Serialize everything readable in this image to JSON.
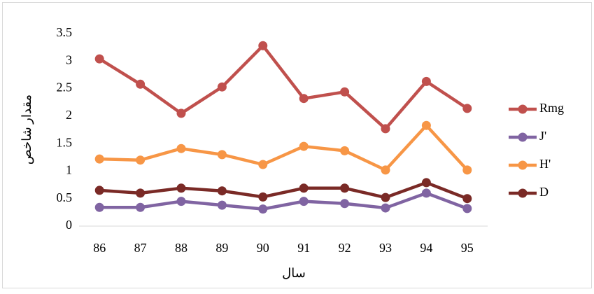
{
  "chart_data": {
    "type": "line",
    "y_label": "مقدار شاخص",
    "x_label": "سال",
    "categories": [
      "86",
      "87",
      "88",
      "89",
      "90",
      "91",
      "92",
      "93",
      "94",
      "95"
    ],
    "series": [
      {
        "name": "Rmg",
        "color": "#c0504d",
        "values": [
          3.04,
          2.58,
          2.05,
          2.53,
          3.28,
          2.32,
          2.44,
          1.77,
          2.63,
          2.14
        ]
      },
      {
        "name": "J'",
        "color": "#8064a2",
        "values": [
          0.34,
          0.34,
          0.45,
          0.38,
          0.31,
          0.45,
          0.41,
          0.33,
          0.6,
          0.32
        ]
      },
      {
        "name": "H'",
        "color": "#f79646",
        "values": [
          1.22,
          1.2,
          1.41,
          1.3,
          1.12,
          1.45,
          1.37,
          1.02,
          1.83,
          1.02
        ]
      },
      {
        "name": "D",
        "color": "#7a2a26",
        "values": [
          0.65,
          0.6,
          0.69,
          0.64,
          0.53,
          0.69,
          0.69,
          0.52,
          0.79,
          0.5
        ]
      }
    ],
    "ylim": [
      0,
      3.5
    ],
    "yticks": [
      0,
      0.5,
      1,
      1.5,
      2,
      2.5,
      3,
      3.5
    ],
    "legend": "right",
    "grid": false
  }
}
